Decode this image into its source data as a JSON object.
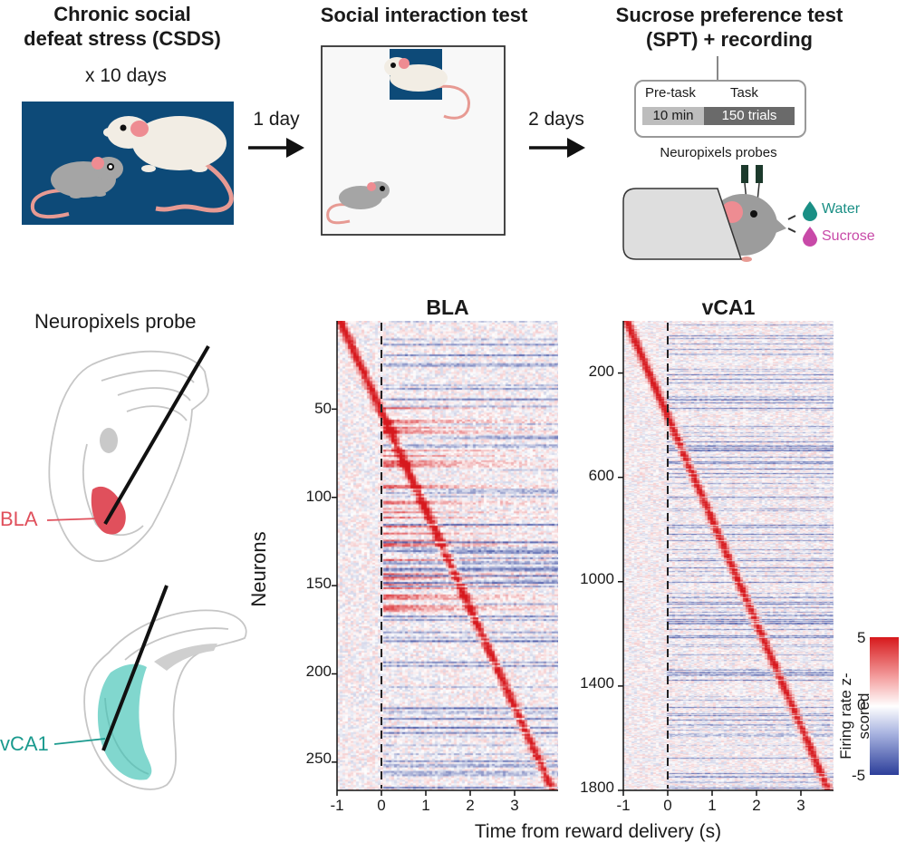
{
  "colors": {
    "bla": "#e0505c",
    "vca1": "#3ec2b4",
    "navy": "#0d4a78",
    "hot": "#d7191c",
    "cold": "#2c3e9a",
    "water": "#1a8f85",
    "sucrose": "#c84aa8",
    "probe_green": "#1c3a2c",
    "mouse_white": "#f2ede4",
    "mouse_gray": "#a5a5a5"
  },
  "timeline": {
    "csds": {
      "title_line1": "Chronic social",
      "title_line2": "defeat stress (CSDS)",
      "duration": "x 10 days"
    },
    "gap1": "1 day",
    "sit": {
      "title": "Social interaction test"
    },
    "gap2": "2 days",
    "spt": {
      "title_line1": "Sucrose preference test",
      "title_line2": "(SPT) + recording",
      "pretask_label": "Pre-task",
      "pretask_value": "10 min",
      "task_label": "Task",
      "task_value": "150 trials",
      "probes_label": "Neuropixels probes",
      "water_label": "Water",
      "sucrose_label": "Sucrose"
    }
  },
  "anatomy": {
    "probe_label": "Neuropixels probe",
    "bla_label": "BLA",
    "vca1_label": "vCA1"
  },
  "chart_data": [
    {
      "type": "heatmap",
      "title": "BLA",
      "ylabel": "Neurons",
      "xlabel": "Time from reward delivery (s)",
      "x_range": [
        -1,
        4
      ],
      "x_ticks": [
        "-1",
        "0",
        "1",
        "2",
        "3"
      ],
      "y_range": [
        1,
        266
      ],
      "y_ticks": [
        "50",
        "100",
        "150",
        "200",
        "250"
      ],
      "n_neurons": 266,
      "reward_time": 0,
      "sorted_by": "peak response time"
    },
    {
      "type": "heatmap",
      "title": "vCA1",
      "ylabel": "Neurons",
      "xlabel": "Time from reward delivery (s)",
      "x_range": [
        -1,
        4
      ],
      "x_ticks": [
        "-1",
        "0",
        "1",
        "2",
        "3"
      ],
      "y_range": [
        1,
        1800
      ],
      "y_ticks": [
        "200",
        "600",
        "1000",
        "1400",
        "1800"
      ],
      "n_neurons": 1800,
      "reward_time": 0,
      "sorted_by": "peak response time"
    }
  ],
  "colorbar": {
    "label": "Firing rate z-scored",
    "range": [
      -5,
      5
    ],
    "ticks": [
      "5",
      "0",
      "-5"
    ]
  }
}
